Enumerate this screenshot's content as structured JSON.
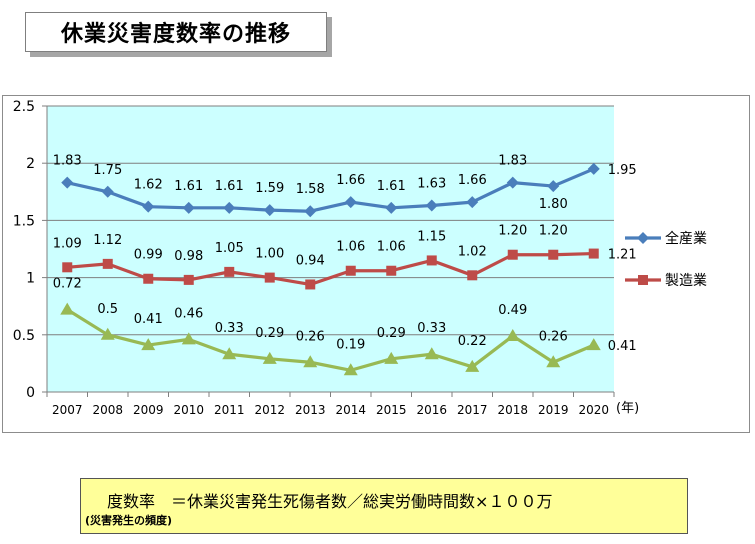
{
  "page": {
    "title": "休業災害度数率の推移",
    "formula": {
      "term": "度数率",
      "equals": "＝",
      "expression": "休業災害発生死傷者数／総実労働時間数×１００万",
      "note": "(災害発生の頻度)"
    }
  },
  "chart_data": {
    "type": "line",
    "x_unit_label": "(年)",
    "categories": [
      "2007",
      "2008",
      "2009",
      "2010",
      "2011",
      "2012",
      "2013",
      "2014",
      "2015",
      "2016",
      "2017",
      "2018",
      "2019",
      "2020"
    ],
    "ylim": [
      0,
      2.5
    ],
    "yticks": [
      "0",
      "0.5",
      "1",
      "1.5",
      "2",
      "2.5"
    ],
    "grid": true,
    "legend_position": "right",
    "plot_background": "#ccffff",
    "series": [
      {
        "name": "全産業",
        "color": "#4a7ebb",
        "marker": "diamond",
        "values": [
          1.83,
          1.75,
          1.62,
          1.61,
          1.61,
          1.59,
          1.58,
          1.66,
          1.61,
          1.63,
          1.66,
          1.83,
          1.8,
          1.95
        ],
        "labels": [
          "1.83",
          "1.75",
          "1.62",
          "1.61",
          "1.61",
          "1.59",
          "1.58",
          "1.66",
          "1.61",
          "1.63",
          "1.66",
          "1.83",
          "1.80",
          "1.95"
        ]
      },
      {
        "name": "製造業",
        "color": "#be4b48",
        "marker": "square",
        "values": [
          1.09,
          1.12,
          0.99,
          0.98,
          1.05,
          1.0,
          0.94,
          1.06,
          1.06,
          1.15,
          1.02,
          1.2,
          1.2,
          1.21
        ],
        "labels": [
          "1.09",
          "1.12",
          "0.99",
          "0.98",
          "1.05",
          "1.00",
          "0.94",
          "1.06",
          "1.06",
          "1.15",
          "1.02",
          "1.20",
          "1.20",
          "1.21"
        ]
      },
      {
        "name": "",
        "color": "#98b954",
        "marker": "triangle",
        "values": [
          0.72,
          0.5,
          0.41,
          0.46,
          0.33,
          0.29,
          0.26,
          0.19,
          0.29,
          0.33,
          0.22,
          0.49,
          0.26,
          0.41
        ],
        "labels": [
          "0.72",
          "0.5",
          "0.41",
          "0.46",
          "0.33",
          "0.29",
          "0.26",
          "0.19",
          "0.29",
          "0.33",
          "0.22",
          "0.49",
          "0.26",
          "0.41"
        ]
      }
    ]
  }
}
